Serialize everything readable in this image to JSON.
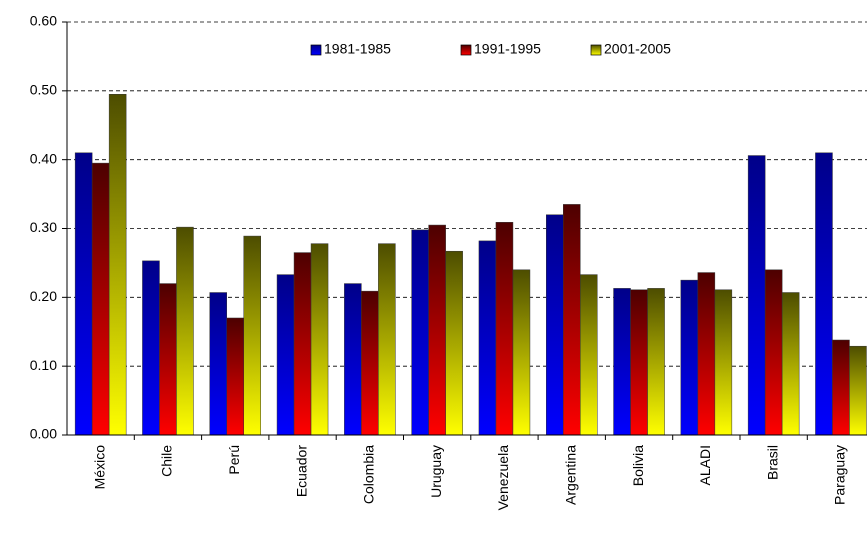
{
  "chart_data": {
    "type": "bar",
    "categories": [
      "México",
      "Chile",
      "Perú",
      "Ecuador",
      "Colombia",
      "Uruguay",
      "Venezuela",
      "Argentina",
      "Bolivia",
      "ALADI",
      "Brasil",
      "Paraguay"
    ],
    "series": [
      {
        "name": "1981-1985",
        "color": "#0000ff",
        "values": [
          0.41,
          0.253,
          0.207,
          0.233,
          0.22,
          0.298,
          0.282,
          0.32,
          0.213,
          0.225,
          0.406,
          0.41
        ]
      },
      {
        "name": "1991-1995",
        "color": "#ff0000",
        "values": [
          0.395,
          0.22,
          0.17,
          0.265,
          0.209,
          0.305,
          0.309,
          0.335,
          0.211,
          0.236,
          0.24,
          0.138
        ]
      },
      {
        "name": "2001-2005",
        "color": "#ffff00",
        "values": [
          0.495,
          0.302,
          0.289,
          0.278,
          0.278,
          0.267,
          0.24,
          0.233,
          0.213,
          0.211,
          0.207,
          0.129
        ]
      }
    ],
    "ylim": [
      0,
      0.6
    ],
    "yticks": [
      {
        "value": 0,
        "label": "0.00"
      },
      {
        "value": 0.1,
        "label": "0.10"
      },
      {
        "value": 0.2,
        "label": "0.20"
      },
      {
        "value": 0.3,
        "label": "0.30"
      },
      {
        "value": 0.4,
        "label": "0.40"
      },
      {
        "value": 0.5,
        "label": "0.50"
      },
      {
        "value": 0.6,
        "label": "0.60"
      }
    ],
    "grid": true,
    "legend": "top"
  }
}
